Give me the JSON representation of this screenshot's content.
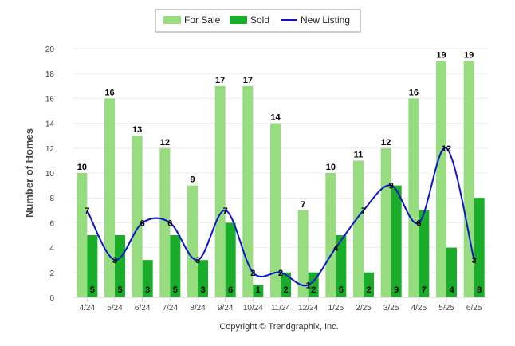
{
  "chart_data": {
    "type": "bar",
    "title": "",
    "xlabel": "",
    "ylabel": "Number of Homes",
    "ylim": [
      0,
      20
    ],
    "yticks": [
      0,
      2,
      4,
      6,
      8,
      10,
      12,
      14,
      16,
      18,
      20
    ],
    "grid": true,
    "legend_position": "top-center",
    "categories": [
      "4/24",
      "5/24",
      "6/24",
      "7/24",
      "8/24",
      "9/24",
      "10/24",
      "11/24",
      "12/24",
      "1/25",
      "2/25",
      "3/25",
      "4/25",
      "5/25",
      "6/25"
    ],
    "series": [
      {
        "name": "For Sale",
        "kind": "bar",
        "color": "#97dc7f",
        "values": [
          10,
          16,
          13,
          12,
          9,
          17,
          17,
          14,
          7,
          10,
          11,
          12,
          16,
          19,
          19
        ]
      },
      {
        "name": "Sold",
        "kind": "bar",
        "color": "#1aad2a",
        "values": [
          5,
          5,
          3,
          5,
          3,
          6,
          1,
          2,
          2,
          5,
          2,
          9,
          7,
          4,
          8
        ]
      },
      {
        "name": "New Listing",
        "kind": "line",
        "color": "#0a16c8",
        "values": [
          7,
          3,
          6,
          6,
          3,
          7,
          2,
          2,
          1,
          4,
          7,
          9,
          6,
          12,
          3
        ]
      }
    ],
    "footer": "Copyright © Trendgraphix, Inc."
  }
}
